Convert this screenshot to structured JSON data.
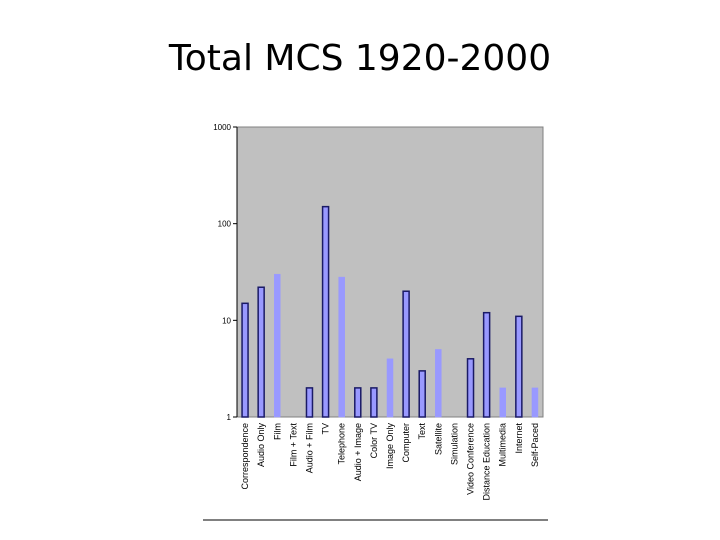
{
  "slide": {
    "title": "Total MCS 1920-2000"
  },
  "chart_data": {
    "type": "bar",
    "title": "Total MCS 1920-2000",
    "xlabel": "",
    "ylabel": "",
    "yscale": "log",
    "ylim": [
      1,
      1000
    ],
    "yticks": [
      {
        "value": 1,
        "label": "1"
      },
      {
        "value": 10,
        "label": "10"
      },
      {
        "value": 100,
        "label": "100"
      },
      {
        "value": 1000,
        "label": "1000"
      }
    ],
    "grid": false,
    "plot_background": "#c0c0c0",
    "colors": {
      "dark": "#1a1a66",
      "light": "#9999ff"
    },
    "categories": [
      "Correspondence",
      "Audio Only",
      "Film",
      "Film + Text",
      "Audio + Film",
      "TV",
      "Telephone",
      "Audio + Image",
      "Color TV",
      "Image Only",
      "Computer",
      "Text",
      "Satellite",
      "Simulation",
      "Video Conference",
      "Distance Education",
      "Multimedia",
      "Internet",
      "Self-Paced"
    ],
    "values": [
      15,
      22,
      30,
      null,
      2,
      150,
      28,
      2,
      2,
      4,
      20,
      3,
      5,
      null,
      4,
      12,
      2,
      11,
      2
    ],
    "bar_styles": [
      "dark",
      "dark",
      "light",
      null,
      "dark",
      "dark",
      "light",
      "dark",
      "dark",
      "light",
      "dark",
      "dark",
      "light",
      null,
      "dark",
      "dark",
      "light",
      "dark",
      "light"
    ]
  }
}
